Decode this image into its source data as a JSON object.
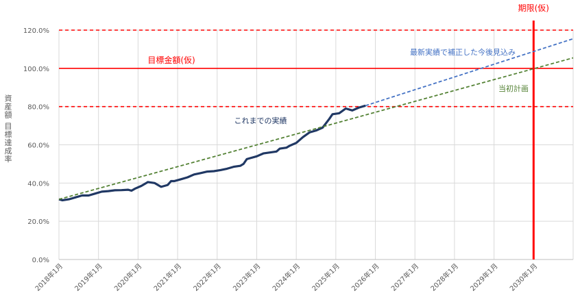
{
  "chart_data": {
    "type": "line",
    "ylabel": "資産額 目標達成率",
    "ylim": [
      0,
      120
    ],
    "ytick_values": [
      0,
      20,
      40,
      60,
      80,
      100,
      120
    ],
    "ytick_labels": [
      "0.0%",
      "20.0%",
      "40.0%",
      "60.0%",
      "80.0%",
      "100.0%",
      "120.0%"
    ],
    "xlim": [
      "2018-01",
      "2031-01"
    ],
    "xtick_values": [
      "2018-01",
      "2019-01",
      "2020-01",
      "2021-01",
      "2022-01",
      "2023-01",
      "2024-01",
      "2025-01",
      "2026-01",
      "2027-01",
      "2028-01",
      "2029-01",
      "2030-01"
    ],
    "xtick_labels": [
      "2018年1月",
      "2019年1月",
      "2020年1月",
      "2021年1月",
      "2022年1月",
      "2023年1月",
      "2024年1月",
      "2025年1月",
      "2026年1月",
      "2027年1月",
      "2028年1月",
      "2029年1月",
      "2030年1月"
    ],
    "grid": true,
    "series": [
      {
        "name": "これまでの実績",
        "style": "solid",
        "color": "#203864",
        "points": [
          [
            "2018-01",
            31.5
          ],
          [
            "2018-02",
            31
          ],
          [
            "2018-04",
            31.5
          ],
          [
            "2018-06",
            32.5
          ],
          [
            "2018-08",
            33.5
          ],
          [
            "2018-10",
            33.5
          ],
          [
            "2018-12",
            34.5
          ],
          [
            "2019-02",
            35.5
          ],
          [
            "2019-04",
            35.8
          ],
          [
            "2019-06",
            36.2
          ],
          [
            "2019-08",
            36.3
          ],
          [
            "2019-10",
            36.5
          ],
          [
            "2019-11",
            36
          ],
          [
            "2019-12",
            37
          ],
          [
            "2020-02",
            38.5
          ],
          [
            "2020-04",
            40.5
          ],
          [
            "2020-06",
            40
          ],
          [
            "2020-08",
            38
          ],
          [
            "2020-10",
            39
          ],
          [
            "2020-11",
            41
          ],
          [
            "2020-12",
            41
          ],
          [
            "2021-02",
            42
          ],
          [
            "2021-04",
            43
          ],
          [
            "2021-06",
            44.5
          ],
          [
            "2021-08",
            45.2
          ],
          [
            "2021-10",
            46
          ],
          [
            "2021-12",
            46.2
          ],
          [
            "2022-02",
            46.8
          ],
          [
            "2022-04",
            47.5
          ],
          [
            "2022-06",
            48.5
          ],
          [
            "2022-08",
            49
          ],
          [
            "2022-09",
            50
          ],
          [
            "2022-10",
            52.5
          ],
          [
            "2022-11",
            53
          ],
          [
            "2023-01",
            54
          ],
          [
            "2023-03",
            55.5
          ],
          [
            "2023-05",
            56
          ],
          [
            "2023-07",
            56.5
          ],
          [
            "2023-08",
            58
          ],
          [
            "2023-10",
            58.5
          ],
          [
            "2023-11",
            59.5
          ],
          [
            "2024-01",
            61
          ],
          [
            "2024-03",
            64
          ],
          [
            "2024-05",
            66.5
          ],
          [
            "2024-07",
            67.5
          ],
          [
            "2024-09",
            69
          ],
          [
            "2024-11",
            73.5
          ],
          [
            "2024-12",
            76
          ],
          [
            "2025-02",
            76.5
          ],
          [
            "2025-04",
            79
          ],
          [
            "2025-06",
            78
          ],
          [
            "2025-08",
            79.5
          ],
          [
            "2025-10",
            80.5
          ]
        ]
      },
      {
        "name": "最新実績で補正した今後見込み",
        "style": "dashed",
        "color": "#4472C4",
        "points": [
          [
            "2025-10",
            80.5
          ],
          [
            "2031-01",
            115.5
          ]
        ]
      },
      {
        "name": "当初計画",
        "style": "dashed",
        "color": "#548235",
        "points": [
          [
            "2018-01",
            31.5
          ],
          [
            "2031-01",
            105.5
          ]
        ]
      }
    ],
    "reference_lines": [
      {
        "orientation": "horizontal",
        "value": 120,
        "style": "dashed",
        "color": "#FF0000"
      },
      {
        "orientation": "horizontal",
        "value": 100,
        "style": "solid",
        "color": "#FF0000",
        "label": "目標金額(仮)"
      },
      {
        "orientation": "horizontal",
        "value": 80,
        "style": "dashed",
        "color": "#FF0000"
      },
      {
        "orientation": "vertical",
        "value": "2030-01",
        "style": "solid",
        "color": "#FF0000",
        "label": "期限(仮)"
      }
    ],
    "annotations": {
      "actual": "これまでの実績",
      "forecast": "最新実績で補正した今後見込み",
      "plan": "当初計画",
      "target": "目標金額(仮)",
      "deadline": "期限(仮)"
    }
  }
}
